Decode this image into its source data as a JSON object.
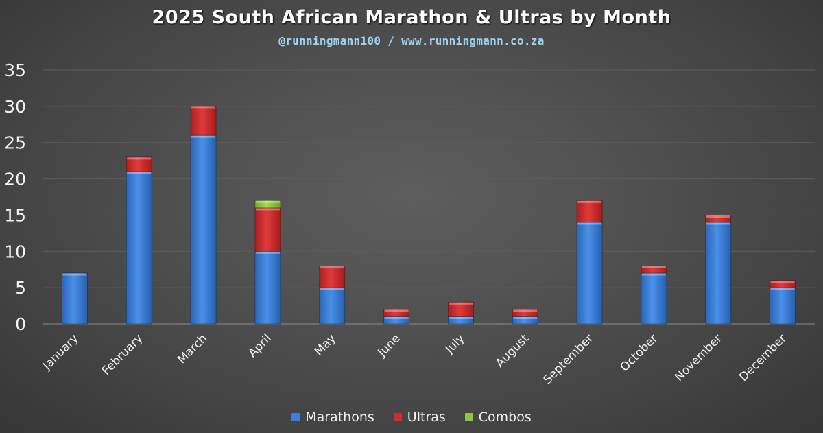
{
  "chart_data": {
    "type": "bar",
    "stacked": true,
    "title": "2025 South African Marathon & Ultras by Month",
    "subtitle": "@runningmann100 / www.runningmann.co.za",
    "categories": [
      "January",
      "February",
      "March",
      "April",
      "May",
      "June",
      "July",
      "August",
      "September",
      "October",
      "November",
      "December"
    ],
    "series": [
      {
        "name": "Marathons",
        "color": "#3b7fd6",
        "values": [
          7,
          21,
          26,
          10,
          5,
          1,
          1,
          1,
          14,
          7,
          14,
          5
        ]
      },
      {
        "name": "Ultras",
        "color": "#d22b2b",
        "values": [
          0,
          2,
          4,
          6,
          3,
          1,
          2,
          1,
          3,
          1,
          1,
          1
        ]
      },
      {
        "name": "Combos",
        "color": "#8dc63f",
        "values": [
          0,
          0,
          0,
          1,
          0,
          0,
          0,
          0,
          0,
          0,
          0,
          0
        ]
      }
    ],
    "ylim": [
      0,
      35
    ],
    "yticks": [
      "0",
      "5",
      "10",
      "15",
      "20",
      "25",
      "30",
      "35"
    ],
    "xlabel": "",
    "ylabel": "",
    "grid": true,
    "legend": "bottom"
  }
}
